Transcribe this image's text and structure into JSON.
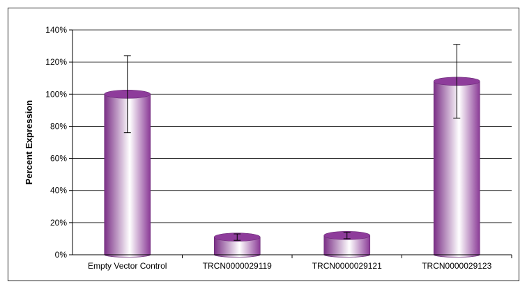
{
  "chart_data": {
    "type": "bar",
    "title": "",
    "xlabel": "",
    "ylabel": "Percent Expression",
    "categories": [
      "Empty Vector Control",
      "TRCN0000029119",
      "TRCN0000029121",
      "TRCN0000029123"
    ],
    "values": [
      100,
      11,
      12,
      108
    ],
    "error": [
      24,
      2,
      2,
      23
    ],
    "ylim": [
      0,
      140
    ],
    "yticks": [
      0,
      20,
      40,
      60,
      80,
      100,
      120,
      140
    ],
    "ytick_labels": [
      "0%",
      "20%",
      "40%",
      "60%",
      "80%",
      "100%",
      "120%",
      "140%"
    ],
    "grid": true,
    "legend": "none",
    "colors": {
      "bar_dark": "#7a2f86",
      "bar_light": "#ffffff",
      "bar_top": "#8e3c9b",
      "grid": "#000000"
    }
  }
}
